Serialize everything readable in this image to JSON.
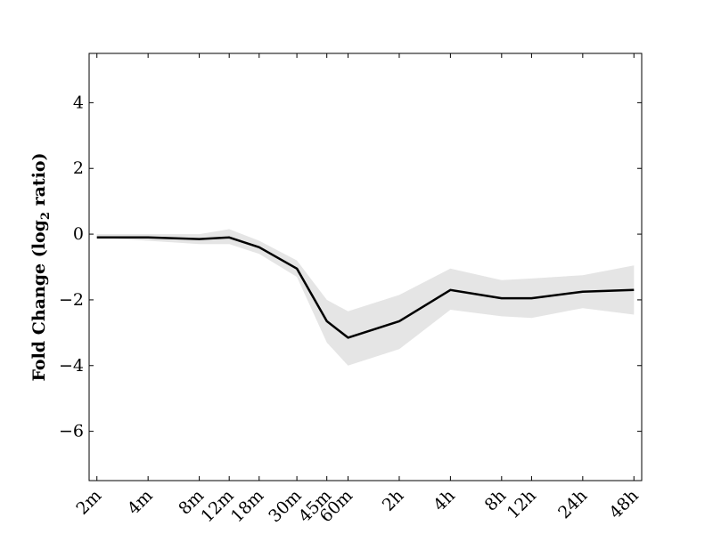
{
  "chart_data": {
    "type": "line",
    "title": "",
    "xlabel": "",
    "ylabel": {
      "prefix": "Fold Change (log",
      "subscript": "2",
      "suffix": " ratio)"
    },
    "x": [
      "2m",
      "4m",
      "8m",
      "12m",
      "18m",
      "30m",
      "45m",
      "60m",
      "2h",
      "4h",
      "8h",
      "12h",
      "24h",
      "48h"
    ],
    "x_minutes": [
      2,
      4,
      8,
      12,
      18,
      30,
      45,
      60,
      120,
      240,
      480,
      720,
      1440,
      2880
    ],
    "x_scale": "log",
    "xlim": [
      1.8,
      3200
    ],
    "ylim": [
      -7.5,
      5.5
    ],
    "yticks": [
      4,
      2,
      0,
      -2,
      -4,
      -6
    ],
    "ytick_labels": [
      "4",
      "2",
      "0",
      "−2",
      "−4",
      "−6"
    ],
    "series": [
      {
        "values": [
          -0.1,
          -0.1,
          -0.15,
          -0.1,
          -0.4,
          -1.05,
          -2.65,
          -3.15,
          -2.65,
          -1.7,
          -1.95,
          -1.95,
          -1.75,
          -1.7
        ],
        "band_upper": [
          0.0,
          0.0,
          0.0,
          0.15,
          -0.2,
          -0.8,
          -2.0,
          -2.35,
          -1.85,
          -1.05,
          -1.4,
          -1.35,
          -1.25,
          -0.95
        ],
        "band_lower": [
          -0.1,
          -0.2,
          -0.3,
          -0.3,
          -0.6,
          -1.3,
          -3.3,
          -4.0,
          -3.5,
          -2.3,
          -2.5,
          -2.55,
          -2.25,
          -2.45
        ],
        "color": "#000000",
        "band_color": "#e5e5e5"
      }
    ],
    "grid": false,
    "legend": "none"
  }
}
